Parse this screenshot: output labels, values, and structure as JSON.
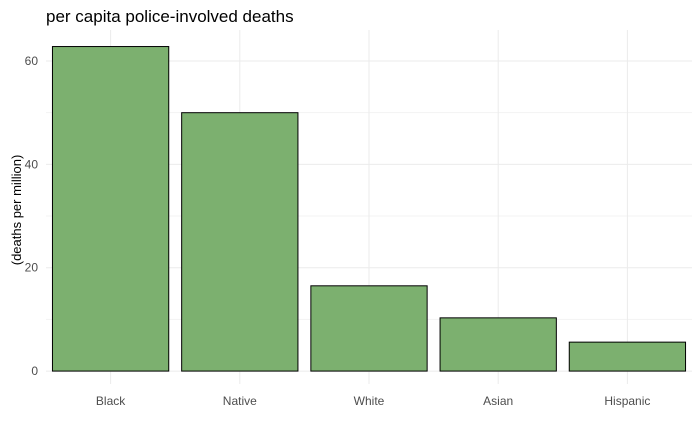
{
  "chart_data": {
    "type": "bar",
    "title": "per capita police-involved deaths",
    "xlabel": "",
    "ylabel": "(deaths per million)",
    "categories": [
      "Black",
      "Native",
      "White",
      "Asian",
      "Hispanic"
    ],
    "values": [
      62.8,
      50.0,
      16.5,
      10.3,
      5.6
    ],
    "ylim": [
      -2.5,
      66
    ],
    "yticks": [
      0,
      20,
      40,
      60
    ],
    "grid": true,
    "legend": "none",
    "bar_color": "#7cb06f"
  }
}
